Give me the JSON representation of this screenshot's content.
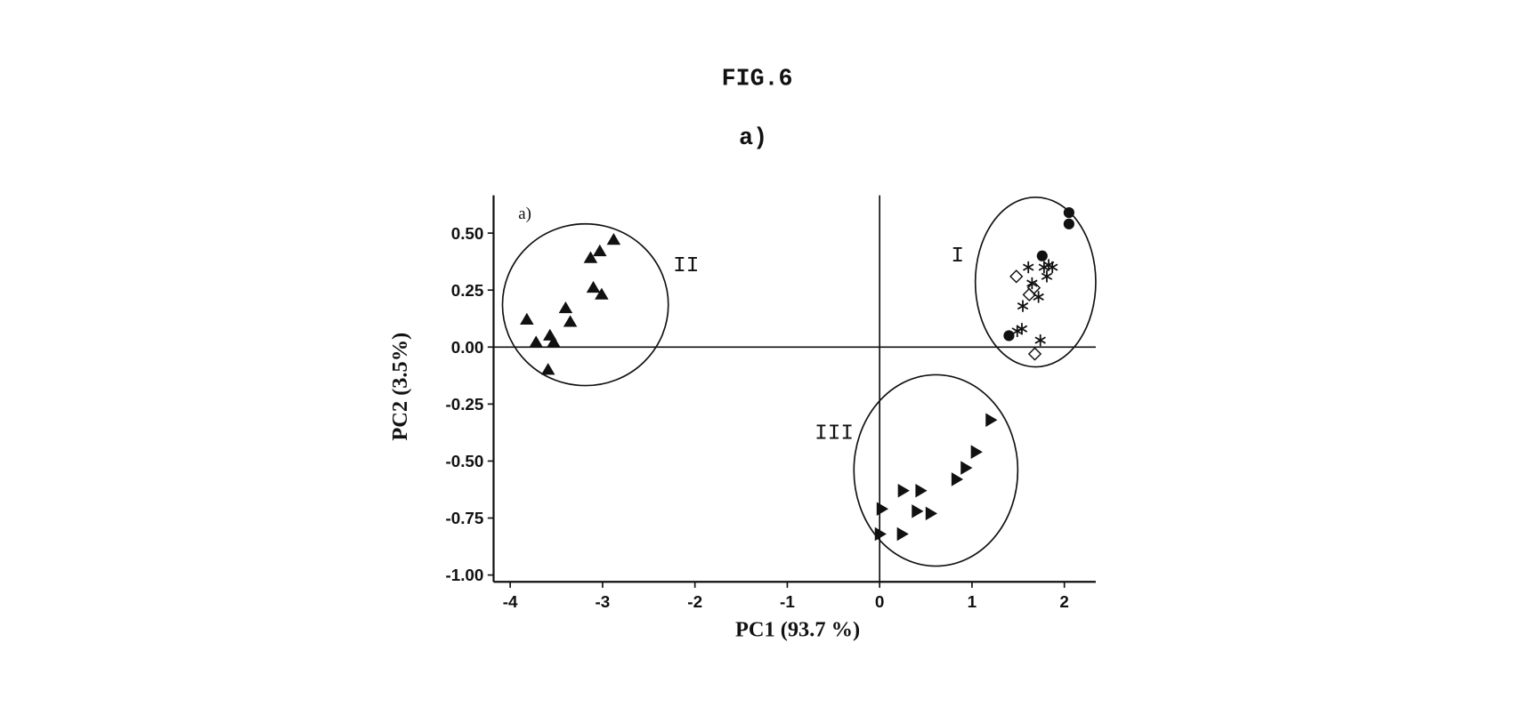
{
  "chart_data": {
    "type": "scatter",
    "title": "FIG.6",
    "subtitle": "a)",
    "panel_label": "a)",
    "x_label": "PC1 (93.7 %)",
    "y_label": "PC2 (3.5%)",
    "group_labels": [
      "I",
      "II",
      "III"
    ],
    "xlim": [
      -4.18,
      2.34
    ],
    "ylim": [
      -1.03,
      0.666
    ],
    "xticks": [
      -4,
      -3,
      -2,
      -1,
      0,
      1,
      2
    ],
    "yticks": [
      {
        "value": 0.5,
        "label": "0.50"
      },
      {
        "value": 0.25,
        "label": "0.25"
      },
      {
        "value": 0,
        "label": "0.00"
      },
      {
        "value": -0.25,
        "label": "-0.25"
      },
      {
        "value": -0.5,
        "label": "-0.50"
      },
      {
        "value": -0.75,
        "label": "-0.75"
      },
      {
        "value": -1,
        "label": "-1.00"
      }
    ],
    "zero_lines": true,
    "series": [
      {
        "marker": "triangle-up",
        "color": "#111111",
        "x": [
          -2.88,
          -3.03,
          -3.13,
          -3.1,
          -3.01,
          -3.4,
          -3.35,
          -3.82,
          -3.57,
          -3.72,
          -3.53,
          -3.59
        ],
        "values": [
          0.47,
          0.42,
          0.39,
          0.26,
          0.23,
          0.17,
          0.11,
          0.12,
          0.05,
          0.02,
          0.02,
          -0.1
        ]
      },
      {
        "marker": "triangle-right",
        "color": "#111111",
        "x": [
          1.2,
          1.04,
          0.93,
          0.83,
          0.25,
          0.44,
          0.4,
          0.55,
          0.02,
          0.24,
          0.0
        ],
        "values": [
          -0.32,
          -0.46,
          -0.53,
          -0.58,
          -0.63,
          -0.63,
          -0.72,
          -0.73,
          -0.71,
          -0.82,
          -0.82
        ]
      },
      {
        "marker": "circle",
        "color": "#111111",
        "x": [
          2.05,
          2.05,
          1.76,
          1.4
        ],
        "values": [
          0.59,
          0.54,
          0.4,
          0.05
        ]
      },
      {
        "marker": "star",
        "color": "#111111",
        "x": [
          1.83,
          1.78,
          1.87,
          1.81,
          1.61,
          1.65,
          1.72,
          1.55,
          1.54,
          1.49,
          1.74
        ],
        "values": [
          0.36,
          0.35,
          0.35,
          0.31,
          0.35,
          0.28,
          0.22,
          0.18,
          0.08,
          0.07,
          0.03
        ]
      },
      {
        "marker": "diamond-open",
        "color": "#111111",
        "x": [
          1.48,
          1.67,
          1.62,
          1.68
        ],
        "values": [
          0.31,
          0.26,
          0.23,
          -0.03
        ]
      }
    ]
  }
}
